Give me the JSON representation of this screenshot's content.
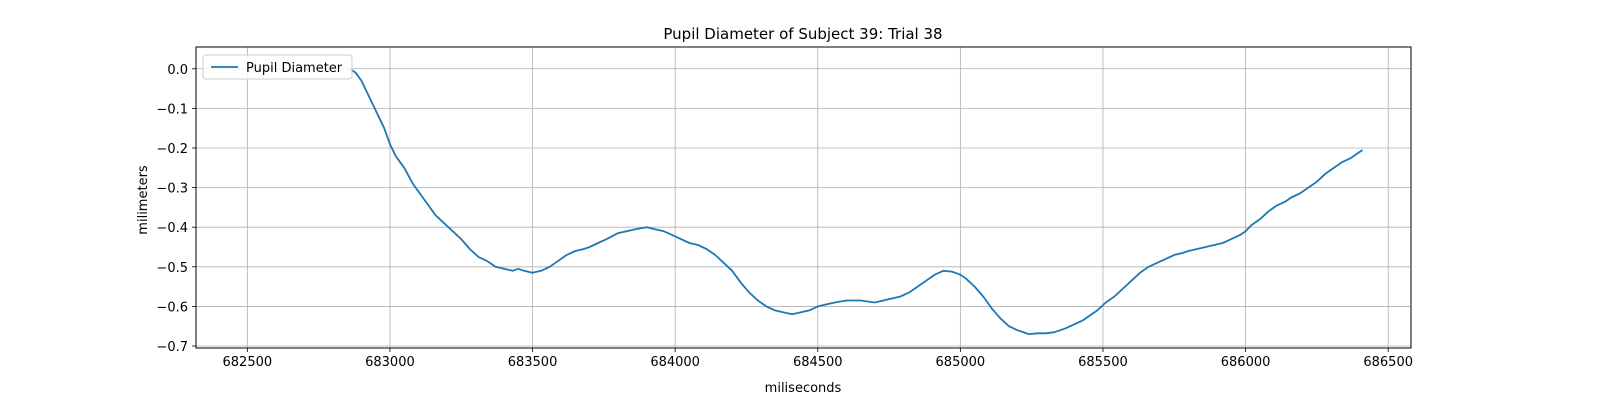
{
  "chart_data": {
    "type": "line",
    "title": "Pupil Diameter of Subject 39: Trial 38",
    "xlabel": "miliseconds",
    "ylabel": "milimeters",
    "xlim": [
      682320,
      686580
    ],
    "ylim": [
      -0.705,
      0.055
    ],
    "xticks": [
      682500,
      683000,
      683500,
      684000,
      684500,
      685000,
      685500,
      686000,
      686500
    ],
    "yticks": [
      0.0,
      -0.1,
      -0.2,
      -0.3,
      -0.4,
      -0.5,
      -0.6,
      -0.7
    ],
    "ytick_labels": [
      "0.0",
      "−0.1",
      "−0.2",
      "−0.3",
      "−0.4",
      "−0.5",
      "−0.6",
      "−0.7"
    ],
    "grid": true,
    "legend_position": "top-left",
    "color": "#1f77b4",
    "series": [
      {
        "name": "Pupil Diameter",
        "x": [
          682860,
          682880,
          682900,
          682920,
          682940,
          682960,
          682980,
          683000,
          683020,
          683050,
          683080,
          683100,
          683130,
          683160,
          683190,
          683220,
          683250,
          683280,
          683310,
          683340,
          683370,
          683400,
          683430,
          683450,
          683470,
          683500,
          683530,
          683560,
          683580,
          683600,
          683620,
          683650,
          683680,
          683700,
          683730,
          683760,
          683800,
          683830,
          683860,
          683900,
          683930,
          683960,
          683990,
          684020,
          684050,
          684080,
          684110,
          684140,
          684170,
          684200,
          684230,
          684260,
          684290,
          684320,
          684350,
          684380,
          684410,
          684440,
          684470,
          684500,
          684530,
          684560,
          684600,
          684650,
          684700,
          684730,
          684760,
          684790,
          684820,
          684850,
          684880,
          684910,
          684940,
          684970,
          685000,
          685020,
          685050,
          685080,
          685110,
          685140,
          685170,
          685200,
          685240,
          685270,
          685300,
          685330,
          685370,
          685400,
          685430,
          685460,
          685480,
          685510,
          685540,
          685570,
          685600,
          685630,
          685660,
          685690,
          685720,
          685750,
          685780,
          685800,
          685830,
          685860,
          685890,
          685920,
          685950,
          685980,
          686000,
          686020,
          686050,
          686080,
          686110,
          686140,
          686160,
          686190,
          686220,
          686250,
          686280,
          686310,
          686340,
          686370,
          686390,
          686410
        ],
        "y": [
          0.0,
          -0.01,
          -0.03,
          -0.06,
          -0.09,
          -0.12,
          -0.15,
          -0.19,
          -0.22,
          -0.25,
          -0.29,
          -0.31,
          -0.34,
          -0.37,
          -0.39,
          -0.41,
          -0.43,
          -0.455,
          -0.475,
          -0.485,
          -0.5,
          -0.505,
          -0.51,
          -0.505,
          -0.51,
          -0.515,
          -0.51,
          -0.5,
          -0.49,
          -0.48,
          -0.47,
          -0.46,
          -0.455,
          -0.45,
          -0.44,
          -0.43,
          -0.415,
          -0.41,
          -0.405,
          -0.4,
          -0.405,
          -0.41,
          -0.42,
          -0.43,
          -0.44,
          -0.445,
          -0.455,
          -0.47,
          -0.49,
          -0.51,
          -0.54,
          -0.565,
          -0.585,
          -0.6,
          -0.61,
          -0.615,
          -0.62,
          -0.615,
          -0.61,
          -0.6,
          -0.595,
          -0.59,
          -0.585,
          -0.585,
          -0.59,
          -0.585,
          -0.58,
          -0.575,
          -0.565,
          -0.55,
          -0.535,
          -0.52,
          -0.51,
          -0.512,
          -0.52,
          -0.53,
          -0.55,
          -0.575,
          -0.605,
          -0.63,
          -0.65,
          -0.66,
          -0.67,
          -0.668,
          -0.668,
          -0.665,
          -0.655,
          -0.645,
          -0.635,
          -0.62,
          -0.61,
          -0.59,
          -0.575,
          -0.555,
          -0.535,
          -0.515,
          -0.5,
          -0.49,
          -0.48,
          -0.47,
          -0.465,
          -0.46,
          -0.455,
          -0.45,
          -0.445,
          -0.44,
          -0.43,
          -0.42,
          -0.41,
          -0.395,
          -0.38,
          -0.36,
          -0.345,
          -0.335,
          -0.325,
          -0.315,
          -0.3,
          -0.285,
          -0.265,
          -0.25,
          -0.235,
          -0.225,
          -0.215,
          -0.205
        ]
      }
    ]
  }
}
